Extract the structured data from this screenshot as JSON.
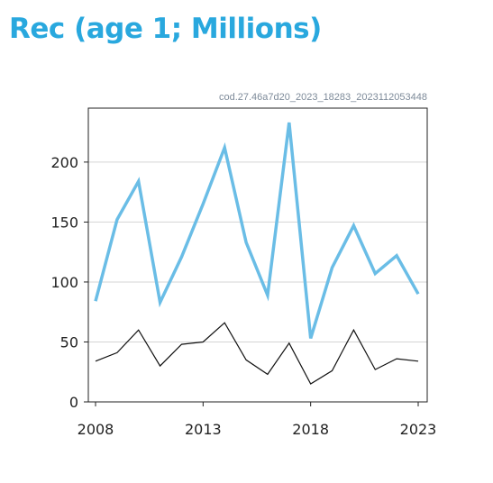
{
  "title": "Rec (age 1; Millions)",
  "colors": {
    "title": "#29a8de",
    "recruitment_line": "#6abde6",
    "secondary_line": "#111111",
    "grid": "#d4d4d4",
    "source_text": "#7d8a99"
  },
  "chart_data": {
    "type": "line",
    "source_label": "cod.27.46a7d20_2023_18283_2023112053448",
    "x": [
      2008,
      2009,
      2010,
      2011,
      2012,
      2013,
      2014,
      2015,
      2016,
      2017,
      2018,
      2019,
      2020,
      2021,
      2022,
      2023
    ],
    "series": [
      {
        "values": [
          84,
          152,
          184,
          83,
          121,
          165,
          212,
          133,
          89,
          233,
          53,
          112,
          147,
          107,
          122,
          90
        ]
      },
      {
        "values": [
          34,
          41,
          60,
          30,
          48,
          50,
          66,
          35,
          23,
          49,
          15,
          26,
          60,
          27,
          36,
          34
        ]
      }
    ],
    "xlim": [
      2008,
      2023
    ],
    "ylim": [
      0,
      245
    ],
    "xticks": [
      "2008",
      "2013",
      "2018",
      "2023"
    ],
    "yticks": [
      "0",
      "50",
      "100",
      "150",
      "200"
    ],
    "grid": "horizontal",
    "xlabel": "",
    "ylabel": ""
  }
}
